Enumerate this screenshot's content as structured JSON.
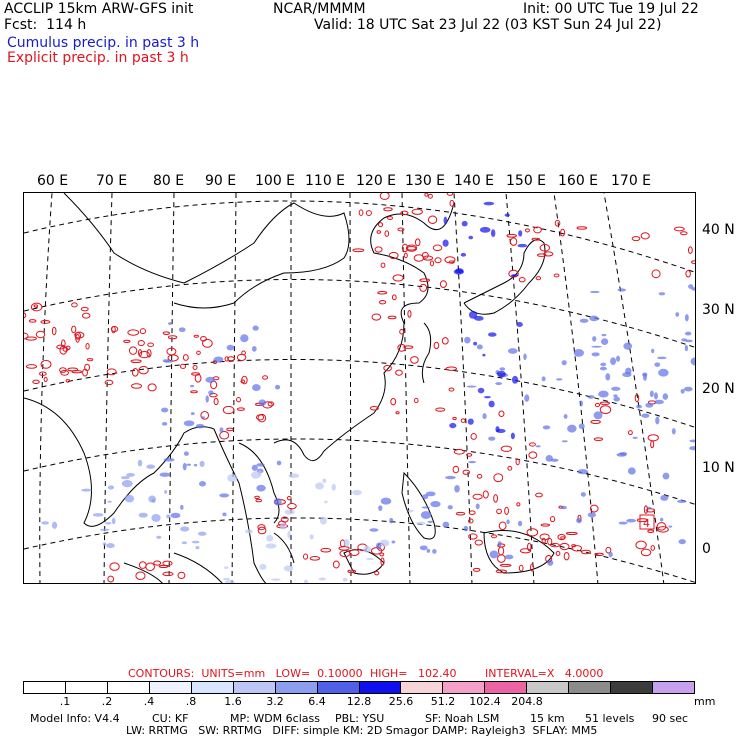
{
  "header": {
    "model": "ACCLIP 15km ARW-GFS init",
    "center": "NCAR/MMMM",
    "init": "Init: 00 UTC Tue 19 Jul 22",
    "fcst": "Fcst:  114 h",
    "valid": "Valid: 18 UTC Sat 23 Jul 22 (03 KST Sun 24 Jul 22)",
    "field1": "Cumulus precip. in past 3 h",
    "field2": "Explicit precip. in past 3 h"
  },
  "axes": {
    "longitude_labels": [
      "60 E",
      "70 E",
      "80 E",
      "90 E",
      "100 E",
      "110 E",
      "120 E",
      "130 E",
      "140 E",
      "150 E",
      "160 E",
      "170 E"
    ],
    "latitude_labels": [
      "40 N",
      "30 N",
      "20 N",
      "10 N",
      "0"
    ]
  },
  "map_annotation": "4",
  "contours": {
    "label": "CONTOURS:  UNITS=mm   LOW=  0.10000",
    "high": "HIGH=   102.40",
    "interval": "INTERVAL=X   4.0000"
  },
  "colorbar": {
    "labels": [
      ".1",
      ".2",
      ".4",
      ".8",
      "1.6",
      "3.2",
      "6.4",
      "12.8",
      "25.6",
      "51.2",
      "102.4",
      "204.8"
    ],
    "unit": "mm",
    "colors": [
      "#ffffff",
      "#ffffff",
      "#ffffff",
      "#eef3ff",
      "#d9e6ff",
      "#bcc7f5",
      "#8c9ef0",
      "#5060e8",
      "#1010ee",
      "#f6d4d8",
      "#f5a0c8",
      "#eb64a5",
      "#c8c8c8",
      "#8c8c8c",
      "#3c3c3c",
      "#c8a0f0"
    ]
  },
  "footer": {
    "line1": [
      "Model Info: V4.4",
      "CU: KF",
      "MP: WDM 6class",
      "PBL: YSU",
      "SF: Noah LSM",
      "15 km",
      "51 levels",
      "90 sec"
    ],
    "line2": "LW: RRTMG   SW: RRTMG   DIFF: simple KM: 2D Smagor DAMP: Rayleigh3  SFLAY: MM5"
  }
}
